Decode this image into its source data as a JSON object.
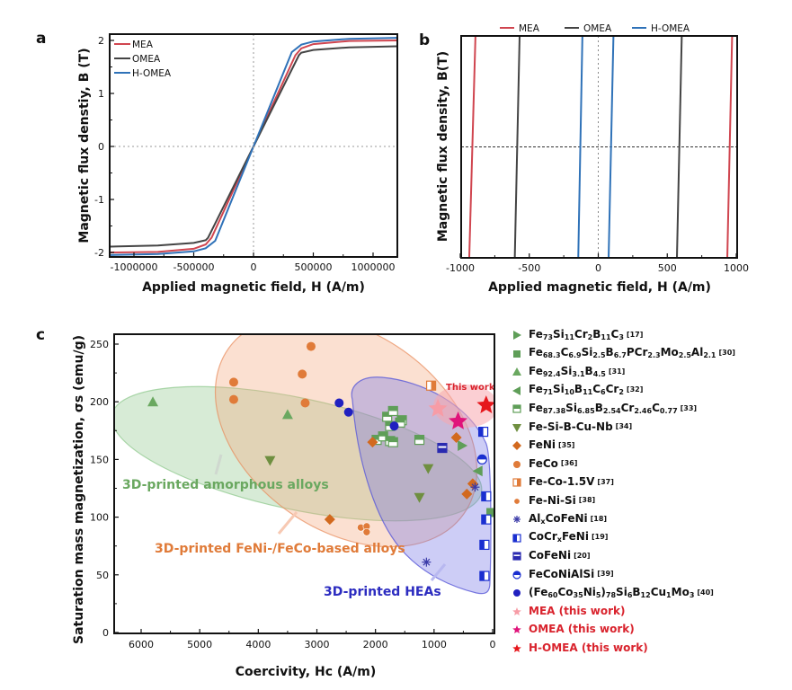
{
  "panel_labels": [
    "a",
    "b",
    "c"
  ],
  "chart_data": [
    {
      "id": "a",
      "type": "line",
      "title": "",
      "xlabel": "Applied magnetic field, H (A/m)",
      "ylabel": "Magnetic flux denstiy, B (T)",
      "xlim": [
        -1200000,
        1200000
      ],
      "ylim": [
        -2.1,
        2.1
      ],
      "xticks": [
        -1000000,
        -500000,
        0,
        500000,
        1000000
      ],
      "xtick_labels": [
        "-1000000",
        "-500000",
        "0",
        "500000",
        "1000000"
      ],
      "yticks": [
        -2,
        -1,
        0,
        1,
        2
      ],
      "ytick_labels": [
        "-2",
        "-1",
        "0",
        "1",
        "2"
      ],
      "reference_lines": {
        "x": 0,
        "y": 0,
        "style": "dotted"
      },
      "legend": {
        "placement": "top-left",
        "entries": [
          "MEA",
          "OMEA",
          "H-OMEA"
        ]
      },
      "series": [
        {
          "name": "MEA",
          "color": "#d0454f",
          "x": [
            -1200000,
            -800000,
            -500000,
            -400000,
            -350000,
            0,
            350000,
            400000,
            500000,
            800000,
            1200000
          ],
          "y": [
            -2.0,
            -1.99,
            -1.93,
            -1.85,
            -1.72,
            0,
            1.72,
            1.85,
            1.93,
            1.99,
            2.0
          ]
        },
        {
          "name": "OMEA",
          "color": "#444444",
          "x": [
            -1200000,
            -800000,
            -500000,
            -400000,
            -380000,
            0,
            380000,
            400000,
            500000,
            800000,
            1200000
          ],
          "y": [
            -1.89,
            -1.87,
            -1.82,
            -1.77,
            -1.72,
            0,
            1.72,
            1.77,
            1.82,
            1.87,
            1.89
          ]
        },
        {
          "name": "H-OMEA",
          "color": "#2f72b8",
          "x": [
            -1200000,
            -800000,
            -500000,
            -400000,
            -320000,
            0,
            320000,
            400000,
            500000,
            800000,
            1200000
          ],
          "y": [
            -2.05,
            -2.03,
            -1.98,
            -1.92,
            -1.78,
            0,
            1.78,
            1.92,
            1.98,
            2.03,
            2.05
          ]
        }
      ]
    },
    {
      "id": "b",
      "type": "line",
      "title": "",
      "xlabel": "Applied magnetic field, H (A/m)",
      "ylabel": "Magnetic flux density, B(T)",
      "xlim": [
        -1000,
        1000
      ],
      "xticks": [
        -1000,
        -500,
        0,
        500,
        1000
      ],
      "xtick_labels": [
        "-1000",
        "-500",
        "0",
        "500",
        "1000"
      ],
      "ylim": [
        -1,
        1
      ],
      "reference_lines": {
        "x": 0,
        "y": 0,
        "style": "dashed"
      },
      "legend": {
        "placement": "top",
        "entries": [
          "MEA",
          "OMEA",
          "H-OMEA"
        ]
      },
      "series": [
        {
          "name": "MEA",
          "color": "#d0454f",
          "segments": [
            [
              [
                -935,
                -1
              ],
              [
                -890,
                1
              ]
            ],
            [
              [
                935,
                -1
              ],
              [
                970,
                1
              ]
            ]
          ]
        },
        {
          "name": "OMEA",
          "color": "#444444",
          "segments": [
            [
              [
                -605,
                -1
              ],
              [
                -570,
                1
              ]
            ],
            [
              [
                570,
                -1
              ],
              [
                605,
                1
              ]
            ]
          ]
        },
        {
          "name": "H-OMEA",
          "color": "#2f72b8",
          "segments": [
            [
              [
                -145,
                -1
              ],
              [
                -115,
                1
              ]
            ],
            [
              [
                75,
                -1
              ],
              [
                110,
                1
              ]
            ]
          ]
        }
      ]
    },
    {
      "id": "c",
      "type": "scatter",
      "title": "",
      "xlabel": "Coercivity, Hc (A/m)",
      "ylabel": "Saturation mass magnetization, σs (emu/g)",
      "xlim": [
        6500,
        0
      ],
      "ylim": [
        0,
        260
      ],
      "x_inverted": true,
      "xticks": [
        6000,
        5000,
        4000,
        3000,
        2000,
        1000,
        0
      ],
      "xtick_labels": [
        "6000",
        "5000",
        "4000",
        "3000",
        "2000",
        "1000",
        "0"
      ],
      "yticks": [
        0,
        50,
        100,
        150,
        200,
        250
      ],
      "ytick_labels": [
        "0",
        "50",
        "100",
        "150",
        "200",
        "250"
      ],
      "legend": {
        "placement": "right-outside"
      },
      "regions": [
        {
          "name": "3D-printed amorphous alloys",
          "color": "#8cc78a"
        },
        {
          "name": "3D-printed FeNi-/FeCo-based alloys",
          "color": "#f4a57c"
        },
        {
          "name": "3D-printed HEAs",
          "color": "#6f6fe6"
        },
        {
          "name": "This work",
          "color": "#f7a8ae"
        }
      ],
      "annotations": [
        {
          "text": "3D-printed amorphous alloys",
          "color": "#6aa860"
        },
        {
          "text": "3D-printed FeNi-/FeCo-based alloys",
          "color": "#e07b39"
        },
        {
          "text": "3D-printed HEAs",
          "color": "#2c2cc0"
        },
        {
          "text": "This work",
          "color": "#d9232d"
        }
      ],
      "series": [
        {
          "name": "Fe73Si11Cr2B11C3",
          "ref": "[17]",
          "marker": "triangle-right",
          "color": "#5f9e58",
          "points": [
            [
              520,
              162
            ]
          ]
        },
        {
          "name": "Fe68.3C6.9Si2.5B6.7PCr2.3Mo2.5Al2.1",
          "ref": "[30]",
          "marker": "square",
          "color": "#5f9e58",
          "points": [
            [
              30,
              104
            ]
          ]
        },
        {
          "name": "Fe92.4Si3.1B4.5",
          "ref": "[31]",
          "marker": "triangle-up",
          "color": "#6aa860",
          "points": [
            [
              5800,
              200
            ],
            [
              3500,
              189
            ]
          ]
        },
        {
          "name": "Fe71Si10B11C6Cr2",
          "ref": "[32]",
          "marker": "triangle-left",
          "color": "#5f9e58",
          "points": [
            [
              250,
              140
            ]
          ]
        },
        {
          "name": "Fe87.38Si6.85B2.54Cr2.46C0.77",
          "ref": "[33]",
          "marker": "square-half",
          "color": "#5f9e58",
          "points": [
            [
              1800,
              187
            ],
            [
              1750,
              179
            ],
            [
              1700,
              192
            ],
            [
              1550,
              184
            ],
            [
              1580,
              182
            ],
            [
              1980,
              167
            ],
            [
              1870,
              170
            ],
            [
              1750,
              166
            ],
            [
              1700,
              165
            ],
            [
              1250,
              167
            ]
          ]
        },
        {
          "name": "Fe-Si-B-Cu-Nb",
          "ref": "[34]",
          "marker": "triangle-down",
          "color": "#6f8f40",
          "points": [
            [
              3800,
              149
            ],
            [
              1100,
              142
            ],
            [
              1250,
              117
            ]
          ]
        },
        {
          "name": "FeNi",
          "ref": "[35]",
          "marker": "diamond",
          "color": "#d2691e",
          "points": [
            [
              2050,
              165
            ],
            [
              620,
              169
            ],
            [
              340,
              129
            ],
            [
              440,
              120
            ],
            [
              2780,
              98
            ]
          ]
        },
        {
          "name": "FeCo",
          "ref": "[36]",
          "marker": "circle",
          "color": "#e07b39",
          "points": [
            [
              4420,
              217
            ],
            [
              4420,
              202
            ],
            [
              3100,
              248
            ],
            [
              3250,
              224
            ],
            [
              3200,
              199
            ]
          ]
        },
        {
          "name": "Fe-Co-1.5V",
          "ref": "[37]",
          "marker": "square-half-orange",
          "color": "#e07b39",
          "points": [
            [
              1050,
              214
            ]
          ]
        },
        {
          "name": "Fe-Ni-Si",
          "ref": "[38]",
          "marker": "circle-cluster",
          "color": "#e07b39",
          "points": [
            [
              2250,
              91
            ],
            [
              2150,
              92
            ],
            [
              2150,
              87
            ]
          ]
        },
        {
          "name": "AlxCoFeNi",
          "ref": "[18]",
          "marker": "asterisk",
          "color": "#3a3aa8",
          "points": [
            [
              1130,
              61
            ],
            [
              300,
              126
            ]
          ]
        },
        {
          "name": "CoCrxFeNi",
          "ref": "[19]",
          "marker": "square-half-left",
          "color": "#1a2fd0",
          "points": [
            [
              160,
              174
            ],
            [
              110,
              118
            ],
            [
              110,
              98
            ],
            [
              140,
              76
            ],
            [
              140,
              49
            ]
          ]
        },
        {
          "name": "CoFeNi",
          "ref": "[20]",
          "marker": "square-half-bottom",
          "color": "#2a2ab0",
          "points": [
            [
              860,
              160
            ]
          ]
        },
        {
          "name": "FeCoNiAlSi",
          "ref": "[39]",
          "marker": "circle-half",
          "color": "#1a2fd0",
          "points": [
            [
              180,
              150
            ]
          ]
        },
        {
          "name": "(Fe60Co35Ni5)78Si6B12Cu1Mo3",
          "ref": "[40]",
          "marker": "circle",
          "color": "#2020c0",
          "points": [
            [
              2620,
              199
            ],
            [
              2460,
              191
            ],
            [
              1680,
              179
            ]
          ]
        },
        {
          "name": "MEA (this work)",
          "ref": "",
          "marker": "star",
          "color": "#f79ca6",
          "points": [
            [
              935,
              194
            ]
          ]
        },
        {
          "name": "OMEA (this work)",
          "ref": "",
          "marker": "star",
          "color": "#e0137a",
          "points": [
            [
              590,
              183
            ]
          ]
        },
        {
          "name": "H-OMEA (this work)",
          "ref": "",
          "marker": "star",
          "color": "#e6161b",
          "points": [
            [
              110,
              197
            ]
          ]
        }
      ]
    }
  ],
  "legend_c_entries": [
    {
      "html_name": "Fe<sub>73</sub>Si<sub>11</sub>Cr<sub>2</sub>B<sub>11</sub>C<sub>3</sub>",
      "ref": "[17]",
      "red": false
    },
    {
      "html_name": "Fe<sub>68.3</sub>C<sub>6.9</sub>Si<sub>2.5</sub>B<sub>6.7</sub>PCr<sub>2.3</sub>Mo<sub>2.5</sub>Al<sub>2.1</sub>",
      "ref": "[30]",
      "red": false
    },
    {
      "html_name": "Fe<sub>92.4</sub>Si<sub>3.1</sub>B<sub>4.5</sub>",
      "ref": "[31]",
      "red": false
    },
    {
      "html_name": "Fe<sub>71</sub>Si<sub>10</sub>B<sub>11</sub>C<sub>6</sub>Cr<sub>2</sub>",
      "ref": "[32]",
      "red": false
    },
    {
      "html_name": "Fe<sub>87.38</sub>Si<sub>6.85</sub>B<sub>2.54</sub>Cr<sub>2.46</sub>C<sub>0.77</sub>",
      "ref": "[33]",
      "red": false
    },
    {
      "html_name": "Fe-Si-B-Cu-Nb",
      "ref": "[34]",
      "red": false
    },
    {
      "html_name": "FeNi",
      "ref": "[35]",
      "red": false
    },
    {
      "html_name": "FeCo",
      "ref": "[36]",
      "red": false
    },
    {
      "html_name": "Fe-Co-1.5V",
      "ref": "[37]",
      "red": false
    },
    {
      "html_name": "Fe-Ni-Si",
      "ref": "[38]",
      "red": false
    },
    {
      "html_name": "Al<sub>x</sub>CoFeNi",
      "ref": "[18]",
      "red": false
    },
    {
      "html_name": "CoCr<sub>x</sub>FeNi",
      "ref": "[19]",
      "red": false
    },
    {
      "html_name": "CoFeNi",
      "ref": "[20]",
      "red": false
    },
    {
      "html_name": "FeCoNiAlSi",
      "ref": "[39]",
      "red": false
    },
    {
      "html_name": "(Fe<sub>60</sub>Co<sub>35</sub>Ni<sub>5</sub>)<sub>78</sub>Si<sub>6</sub>B<sub>12</sub>Cu<sub>1</sub>Mo<sub>3</sub>",
      "ref": "[40]",
      "red": false
    },
    {
      "html_name": "MEA (this work)",
      "ref": "",
      "red": true
    },
    {
      "html_name": "OMEA (this work)",
      "ref": "",
      "red": true
    },
    {
      "html_name": "H-OMEA (this work)",
      "ref": "",
      "red": true
    }
  ]
}
